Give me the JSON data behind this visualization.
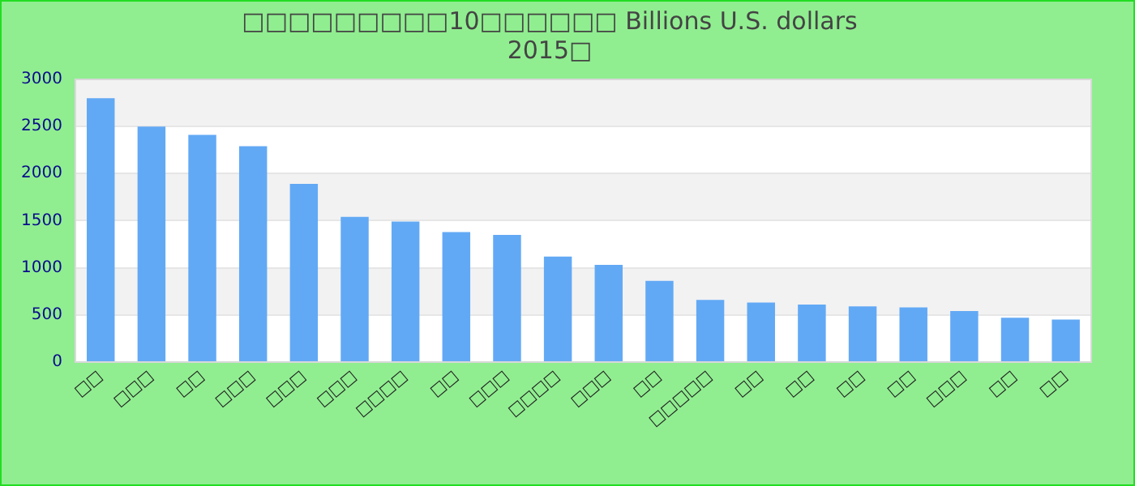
{
  "chart_data": {
    "type": "bar",
    "title": "□□□□□□□□□10□□□□□□ Billions U.S. dollars\n2015□",
    "categories": [
      "□□",
      "□□□",
      "□□",
      "□□□",
      "□□□",
      "□□□",
      "□□□□",
      "□□",
      "□□□",
      "□□□□",
      "□□□",
      "□□",
      "□□□□□",
      "□□",
      "□□",
      "□□",
      "□□",
      "□□□",
      "□□",
      "□□"
    ],
    "values": [
      2800,
      2500,
      2410,
      2290,
      1890,
      1540,
      1490,
      1380,
      1350,
      1120,
      1030,
      860,
      660,
      630,
      610,
      590,
      580,
      540,
      470,
      450
    ],
    "color": "#62a9f5",
    "ylim": [
      0,
      3000
    ],
    "yticks": [
      0,
      500,
      1000,
      1500,
      2000,
      2500,
      3000
    ],
    "grid": "y",
    "legend": false
  }
}
